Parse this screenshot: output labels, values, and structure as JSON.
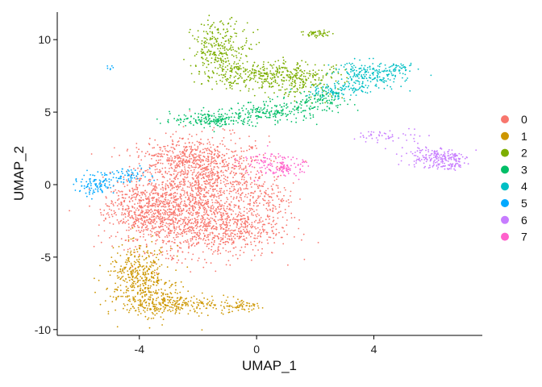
{
  "chart_data": {
    "type": "scatter",
    "title": "",
    "xlabel": "UMAP_1",
    "ylabel": "UMAP_2",
    "xlim": [
      -6.8,
      7.7
    ],
    "ylim": [
      -10.4,
      11.9
    ],
    "x_ticks": [
      -4,
      0,
      4
    ],
    "x_tick_labels": [
      "-4",
      "0",
      "4"
    ],
    "y_ticks": [
      -10,
      -5,
      0,
      5,
      10
    ],
    "y_tick_labels": [
      "-10",
      "-5",
      "0",
      "5",
      "10"
    ],
    "grid": false,
    "legend_position": "right",
    "series": [
      {
        "name": "0",
        "color": "#F8766D",
        "clusters": [
          [
            -1.8,
            0.5,
            1.1,
            1.4,
            900
          ],
          [
            -3.0,
            -2.0,
            0.9,
            1.3,
            700
          ],
          [
            -1.2,
            -3.0,
            1.0,
            1.0,
            600
          ],
          [
            -4.2,
            -1.6,
            0.5,
            1.0,
            250
          ],
          [
            -2.5,
            2.0,
            0.8,
            0.6,
            200
          ],
          [
            0.3,
            -1.2,
            0.5,
            0.9,
            150
          ]
        ]
      },
      {
        "name": "1",
        "color": "#CD9600",
        "clusters": [
          [
            -4.0,
            -6.3,
            0.55,
            1.0,
            380
          ],
          [
            -3.4,
            -8.2,
            0.6,
            0.6,
            220
          ],
          [
            -2.0,
            -8.3,
            0.8,
            0.3,
            120
          ],
          [
            -0.4,
            -8.4,
            0.25,
            0.15,
            40
          ]
        ]
      },
      {
        "name": "2",
        "color": "#7CAE00",
        "clusters": [
          [
            -1.2,
            9.3,
            0.5,
            1.0,
            300
          ],
          [
            0.2,
            7.5,
            1.0,
            0.5,
            300
          ],
          [
            1.6,
            7.2,
            0.7,
            0.6,
            150
          ],
          [
            2.1,
            10.4,
            0.3,
            0.15,
            50
          ]
        ]
      },
      {
        "name": "3",
        "color": "#00BE67",
        "clusters": [
          [
            -1.5,
            4.5,
            0.7,
            0.25,
            180
          ],
          [
            0.6,
            5.0,
            0.8,
            0.35,
            200
          ],
          [
            2.2,
            5.8,
            0.5,
            0.35,
            90
          ]
        ]
      },
      {
        "name": "4",
        "color": "#00BFC4",
        "clusters": [
          [
            3.8,
            7.5,
            0.6,
            0.5,
            220
          ],
          [
            2.7,
            6.5,
            0.5,
            0.3,
            90
          ],
          [
            4.9,
            8.0,
            0.25,
            0.15,
            40
          ]
        ]
      },
      {
        "name": "5",
        "color": "#00A9FF",
        "clusters": [
          [
            -5.5,
            -0.1,
            0.35,
            0.3,
            90
          ],
          [
            -4.6,
            0.6,
            0.5,
            0.3,
            80
          ],
          [
            -5.0,
            8.1,
            0.1,
            0.06,
            6
          ]
        ]
      },
      {
        "name": "6",
        "color": "#C77CFF",
        "clusters": [
          [
            6.0,
            1.9,
            0.45,
            0.4,
            160
          ],
          [
            6.7,
            1.6,
            0.2,
            0.35,
            60
          ],
          [
            4.6,
            3.3,
            0.6,
            0.3,
            50
          ]
        ]
      },
      {
        "name": "7",
        "color": "#FF61CC",
        "clusters": [
          [
            1.0,
            1.2,
            0.3,
            0.3,
            90
          ],
          [
            0.2,
            1.5,
            0.4,
            0.5,
            60
          ]
        ]
      }
    ]
  }
}
